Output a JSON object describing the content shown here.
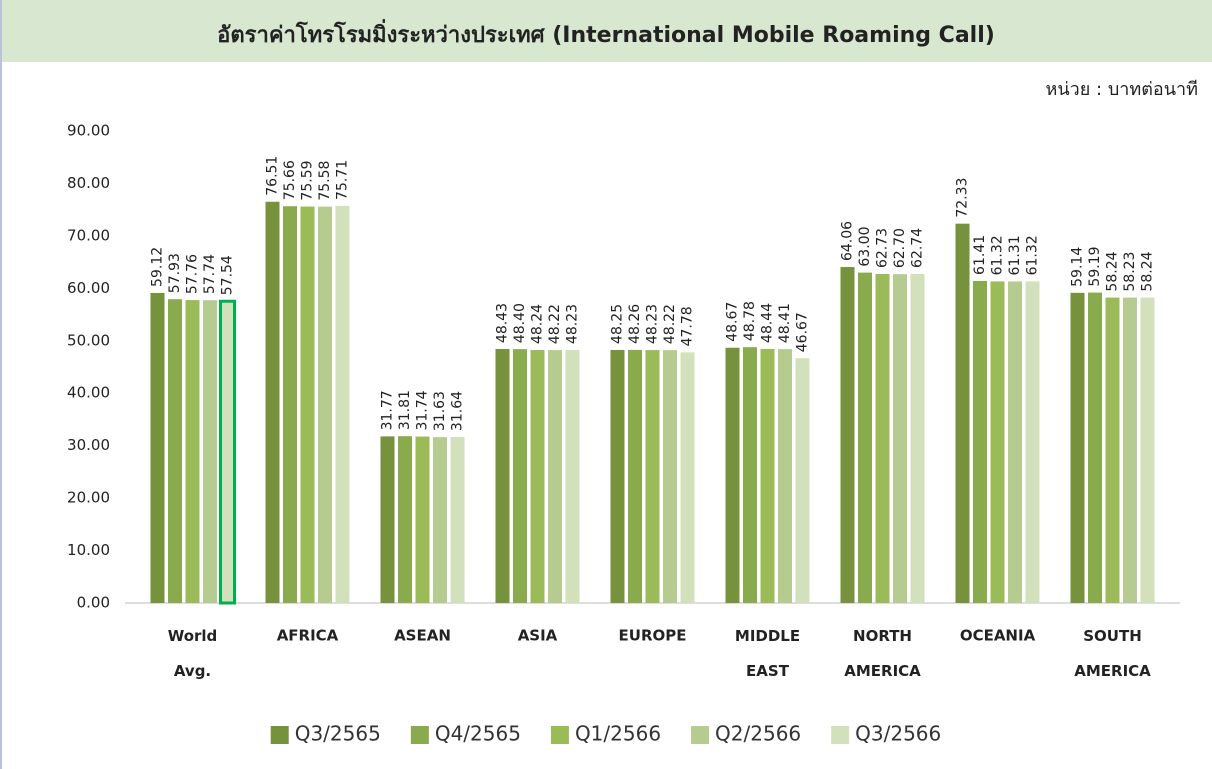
{
  "chart_data": {
    "type": "bar",
    "title": "อัตราค่าโทรโรมมิ่งระหว่างประเทศ (International Mobile Roaming Call)",
    "unit_label": "หน่วย : บาทต่อนาที",
    "categories": [
      "World Avg.",
      "AFRICA",
      "ASEAN",
      "ASIA",
      "EUROPE",
      "MIDDLE EAST",
      "NORTH AMERICA",
      "OCEANIA",
      "SOUTH AMERICA"
    ],
    "series": [
      {
        "name": "Q3/2565",
        "color": "#76923c",
        "values": [
          59.12,
          76.51,
          31.77,
          48.43,
          48.25,
          48.67,
          64.06,
          72.33,
          59.14
        ],
        "value_labels": [
          "59.12",
          "76.51",
          "31.77",
          "48.43",
          "48.25",
          "48.67",
          "64.06",
          "72.33",
          "59.14"
        ]
      },
      {
        "name": "Q4/2565",
        "color": "#8aab4d",
        "values": [
          57.93,
          75.66,
          31.81,
          48.4,
          48.26,
          48.78,
          63.0,
          61.41,
          59.19
        ],
        "value_labels": [
          "57.93",
          "75.66",
          "31.81",
          "48.40",
          "48.26",
          "48.78",
          "63.00",
          "61.41",
          "59.19"
        ]
      },
      {
        "name": "Q1/2566",
        "color": "#9bbb59",
        "values": [
          57.76,
          75.59,
          31.74,
          48.24,
          48.23,
          48.44,
          62.73,
          61.32,
          58.24
        ],
        "value_labels": [
          "57.76",
          "75.59",
          "31.74",
          "48.24",
          "48.23",
          "48.44",
          "62.73",
          "61.32",
          "58.24"
        ]
      },
      {
        "name": "Q2/2566",
        "color": "#b5cb8f",
        "values": [
          57.74,
          75.58,
          31.63,
          48.22,
          48.22,
          48.41,
          62.7,
          61.31,
          58.23
        ],
        "value_labels": [
          "57.74",
          "75.58",
          "31.63",
          "48.22",
          "48.22",
          "48.41",
          "62.70",
          "61.31",
          "58.23"
        ]
      },
      {
        "name": "Q3/2566",
        "color": "#d2e0bb",
        "values": [
          57.54,
          75.71,
          31.64,
          48.23,
          47.78,
          46.67,
          62.74,
          61.32,
          58.24
        ],
        "value_labels": [
          "57.54",
          "75.71",
          "31.64",
          "48.23",
          "47.78",
          "46.67",
          "62.74",
          "61.32",
          "58.24"
        ]
      }
    ],
    "ylim": [
      0,
      90
    ],
    "yticks": [
      {
        "value": 0,
        "label": "0.00"
      },
      {
        "value": 10,
        "label": "10.00"
      },
      {
        "value": 20,
        "label": "20.00"
      },
      {
        "value": 30,
        "label": "30.00"
      },
      {
        "value": 40,
        "label": "40.00"
      },
      {
        "value": 50,
        "label": "50.00"
      },
      {
        "value": 60,
        "label": "60.00"
      },
      {
        "value": 70,
        "label": "70.00"
      },
      {
        "value": 80,
        "label": "80.00"
      },
      {
        "value": 90,
        "label": "90.00"
      }
    ],
    "grid": false,
    "legend": "bottom",
    "highlight": {
      "series": 4,
      "category": 0,
      "color": "#00b050"
    }
  }
}
